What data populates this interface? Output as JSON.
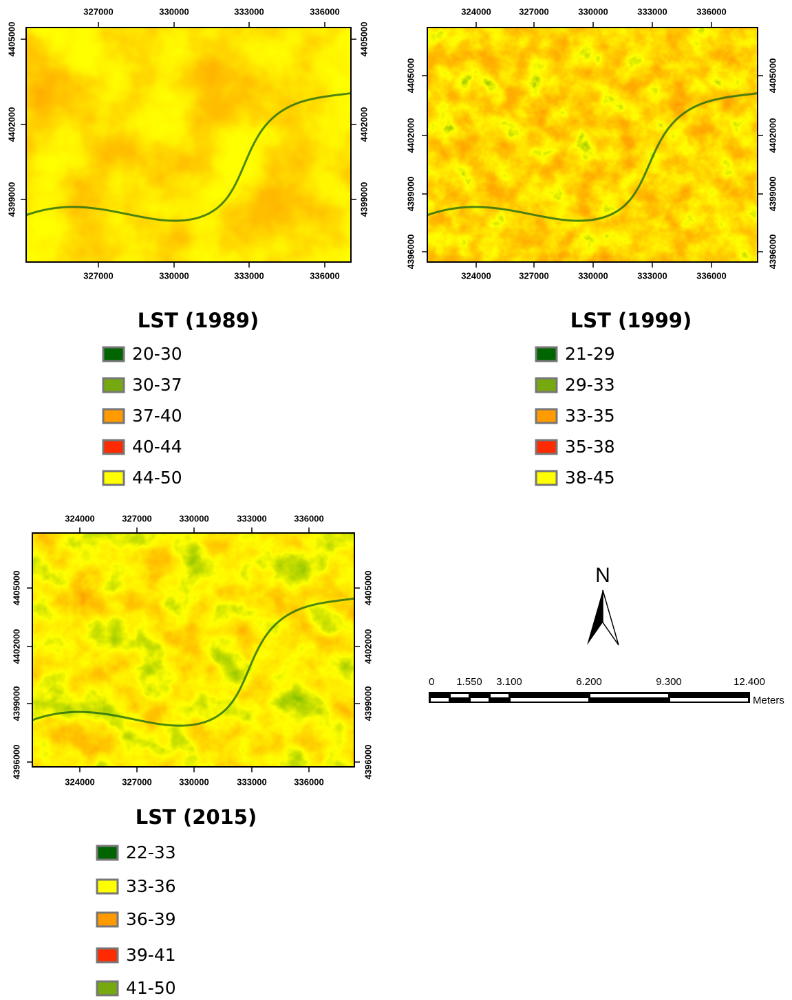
{
  "maps": [
    {
      "title": "LST (1989)",
      "top_ticks": [
        "327000",
        "330000",
        "333000",
        "336000"
      ],
      "bottom_ticks": [
        "327000",
        "330000",
        "333000",
        "336000"
      ],
      "left_ticks": [
        "4405000",
        "4402000",
        "4399000"
      ],
      "right_ticks": [
        "4405000",
        "4402000",
        "4399000"
      ],
      "legend": [
        {
          "label": "20-30",
          "color": "#006400"
        },
        {
          "label": "30-37",
          "color": "#76a910"
        },
        {
          "label": "37-40",
          "color": "#ff9a00"
        },
        {
          "label": "40-44",
          "color": "#ff2a00"
        },
        {
          "label": "44-50",
          "color": "#ffff00"
        }
      ]
    },
    {
      "title": "LST (1999)",
      "top_ticks": [
        "324000",
        "327000",
        "330000",
        "333000",
        "336000"
      ],
      "bottom_ticks": [
        "324000",
        "327000",
        "330000",
        "333000",
        "336000"
      ],
      "left_ticks": [
        "4405000",
        "4402000",
        "4399000",
        "4396000"
      ],
      "right_ticks": [
        "4405000",
        "4402000",
        "4399000",
        "4396000"
      ],
      "legend": [
        {
          "label": "21-29",
          "color": "#006400"
        },
        {
          "label": "29-33",
          "color": "#76a910"
        },
        {
          "label": "33-35",
          "color": "#ff9a00"
        },
        {
          "label": "35-38",
          "color": "#ff2a00"
        },
        {
          "label": "38-45",
          "color": "#ffff00"
        }
      ]
    },
    {
      "title": "LST (2015)",
      "top_ticks": [
        "324000",
        "327000",
        "330000",
        "333000",
        "336000"
      ],
      "bottom_ticks": [
        "324000",
        "327000",
        "330000",
        "333000",
        "336000"
      ],
      "left_ticks": [
        "4405000",
        "4402000",
        "4399000",
        "4396000"
      ],
      "right_ticks": [
        "4405000",
        "4402000",
        "4399000",
        "4396000"
      ],
      "legend": [
        {
          "label": "22-33",
          "color": "#006400"
        },
        {
          "label": "33-36",
          "color": "#ffff00"
        },
        {
          "label": "36-39",
          "color": "#ff9a00"
        },
        {
          "label": "39-41",
          "color": "#ff2a00"
        },
        {
          "label": "41-50",
          "color": "#76a910"
        }
      ]
    }
  ],
  "north": "N",
  "scale_bar": {
    "labels": [
      "0",
      "1.550",
      "3.100",
      "6.200",
      "9.300",
      "12.400"
    ],
    "unit": "Meters"
  }
}
